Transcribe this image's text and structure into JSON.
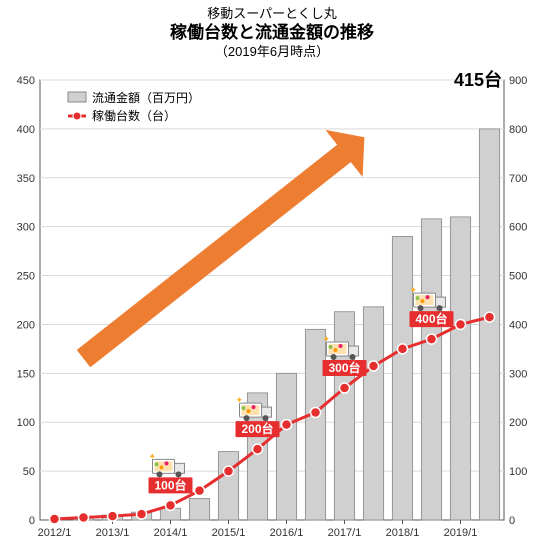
{
  "titles": {
    "super": "移動スーパーとくし丸",
    "main": "稼働台数と流通金額の推移",
    "sub": "（2019年6月時点）"
  },
  "legend": {
    "bar": "流通金額（百万円）",
    "line": "稼働台数（台）"
  },
  "chart": {
    "type": "combo-bar-line",
    "categories": [
      "2012/1",
      "",
      "2013/1",
      "",
      "2014/1",
      "",
      "2015/1",
      "",
      "2016/1",
      "",
      "2017/1",
      "",
      "2018/1",
      "",
      "2019/1",
      ""
    ],
    "x_ticks_shown": [
      "2012/1",
      "2013/1",
      "2014/1",
      "2015/1",
      "2016/1",
      "2017/1",
      "2018/1",
      "2019/1"
    ],
    "bar_values": [
      0,
      2,
      5,
      8,
      12,
      22,
      70,
      130,
      150,
      195,
      213,
      218,
      290,
      308,
      310,
      400
    ],
    "line_values": [
      2,
      5,
      8,
      12,
      30,
      60,
      100,
      145,
      195,
      220,
      270,
      315,
      350,
      370,
      400,
      415
    ],
    "left_axis": {
      "min": 0,
      "max": 450,
      "step": 50
    },
    "right_axis": {
      "min": 0,
      "max": 900,
      "step": 100
    },
    "bar_color": "#d0d0d0",
    "bar_border": "#888888",
    "line_color": "#e62e2e",
    "marker_color": "#e62e2e",
    "marker_border": "#ffffff",
    "line_width": 3,
    "marker_radius": 5,
    "grid_color": "#d9d9d9",
    "axis_color": "#555555",
    "background": "#ffffff",
    "label_fontsize": 11
  },
  "milestones": [
    {
      "x_index": 4,
      "label": "100台"
    },
    {
      "x_index": 7,
      "label": "200台"
    },
    {
      "x_index": 10,
      "label": "300台"
    },
    {
      "x_index": 13,
      "label": "400台"
    }
  ],
  "final_label": "415台",
  "arrow": {
    "color": "#ed7d31"
  }
}
